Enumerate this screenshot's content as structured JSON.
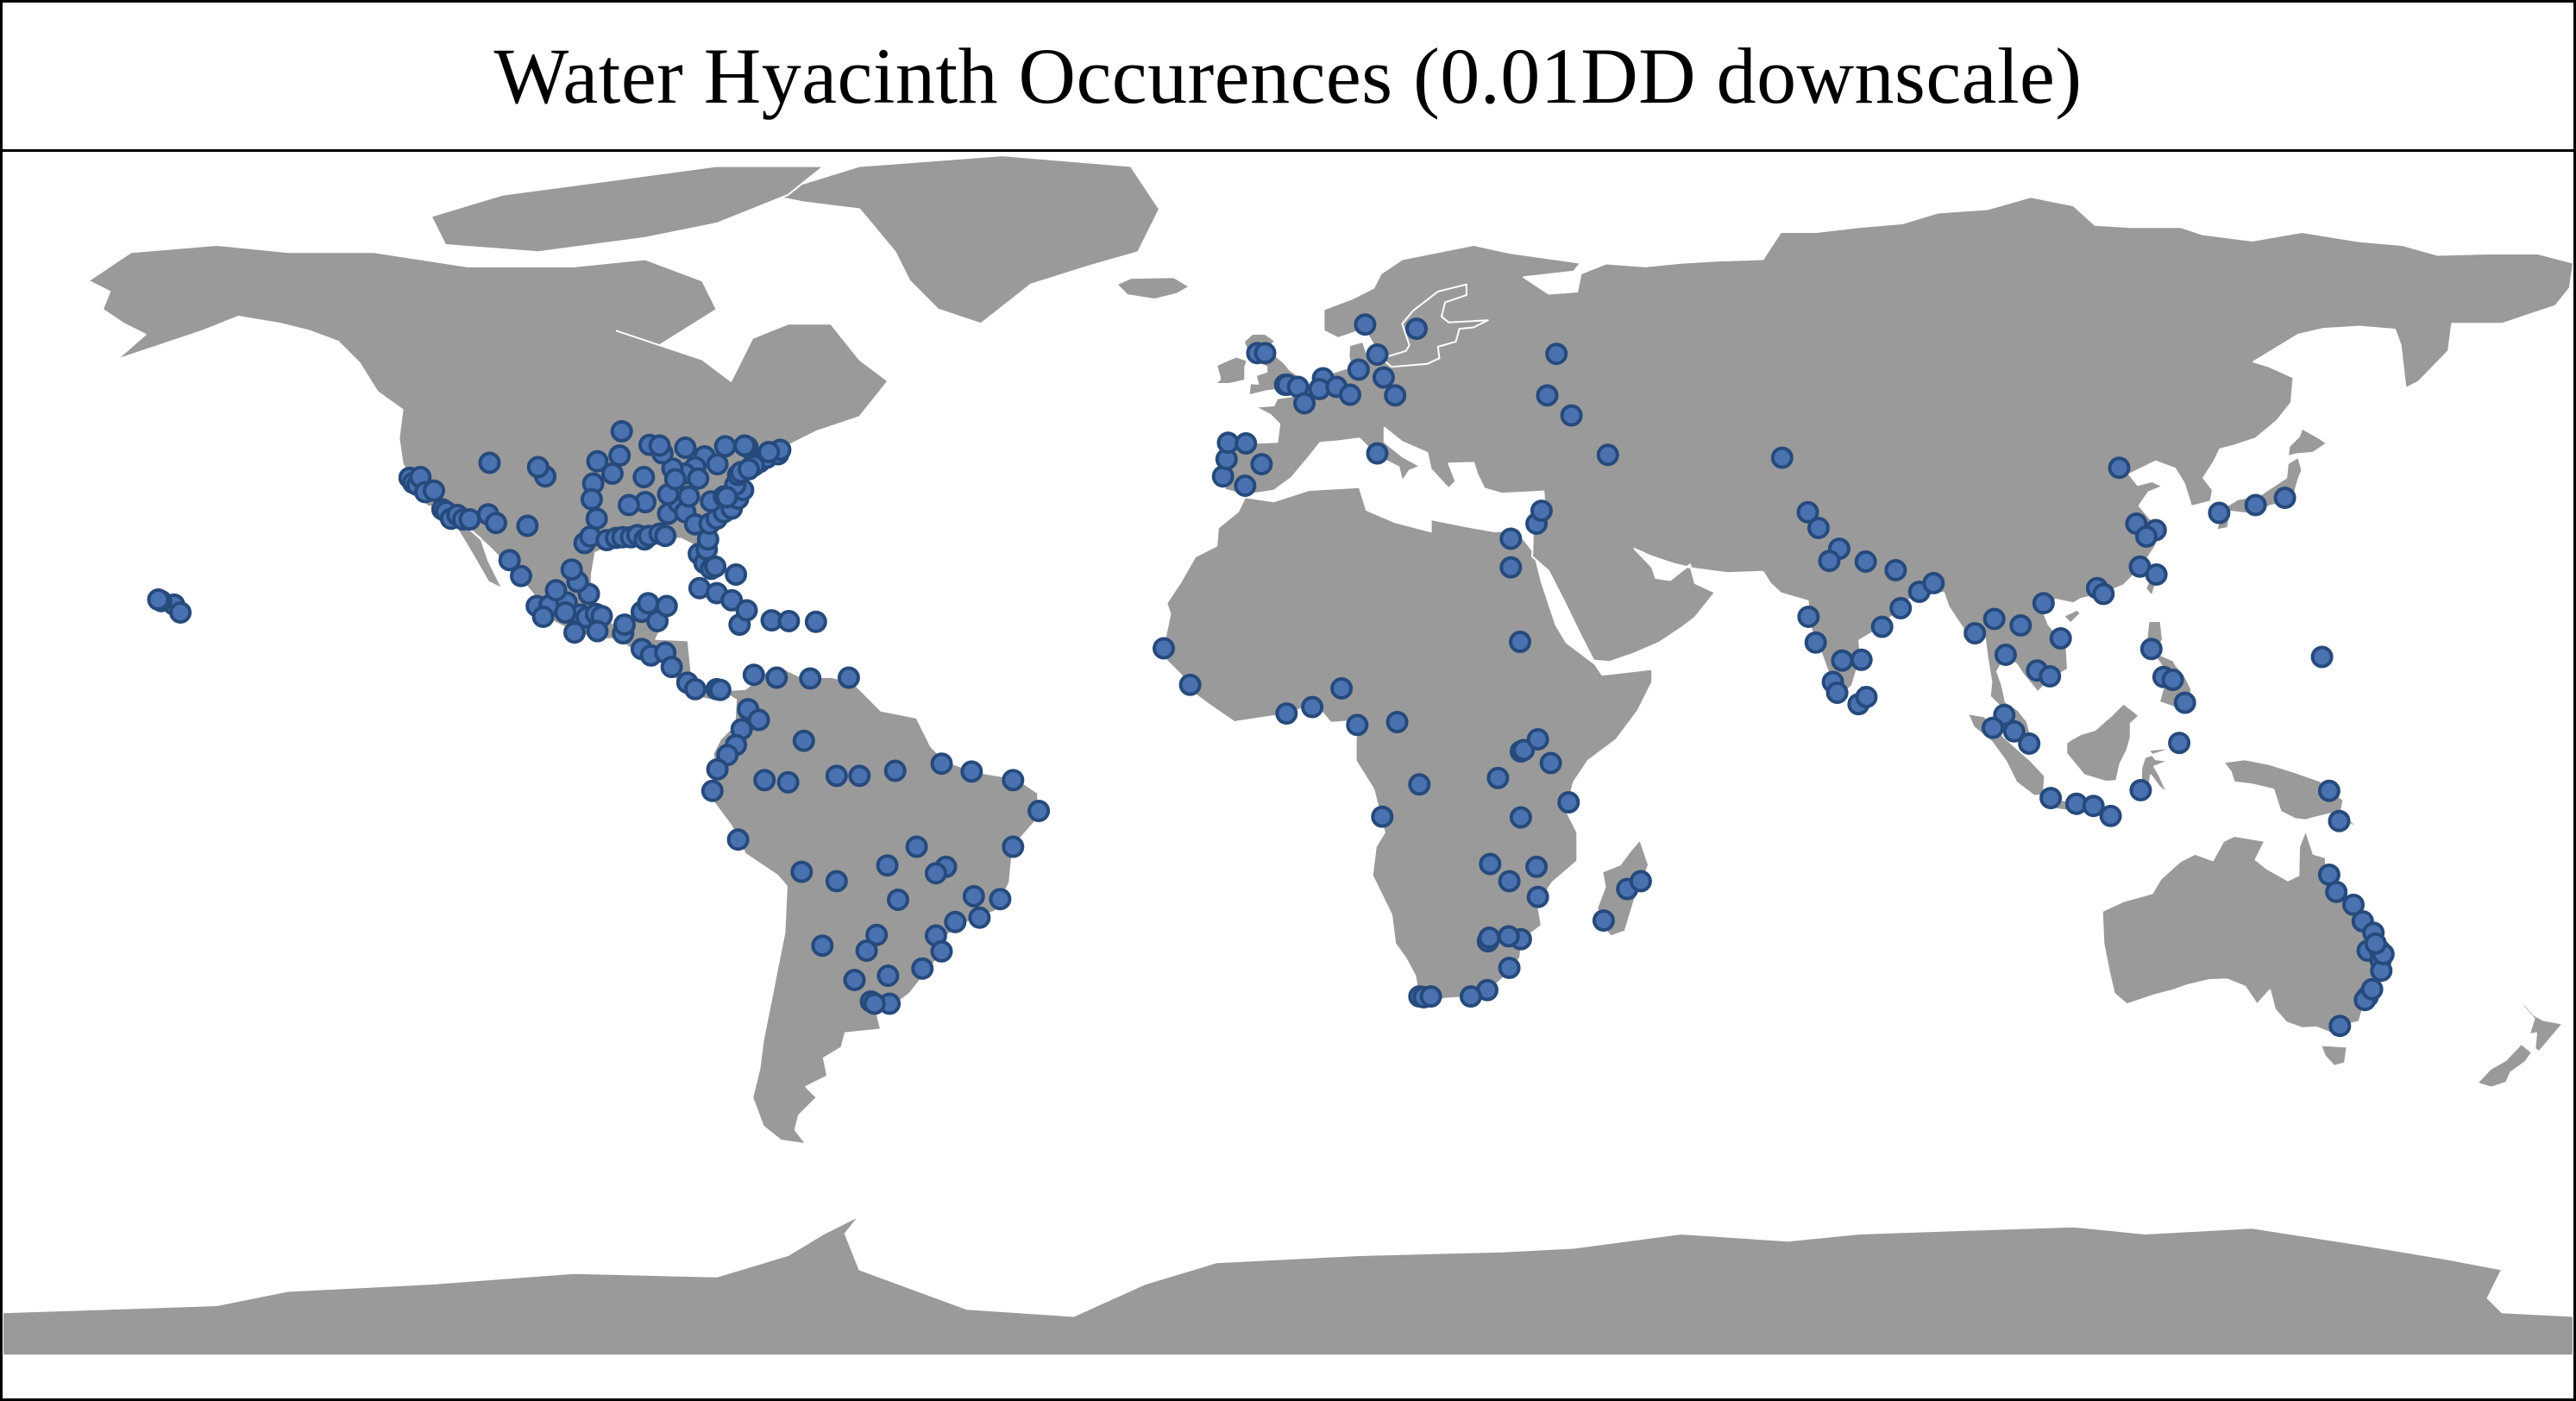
{
  "title": "Water Hyacinth Occurences (0.01DD downscale)",
  "colors": {
    "land": "#9a9a9a",
    "ocean": "#ffffff",
    "point_fill": "#4a72b0",
    "point_stroke": "#264a7c"
  },
  "chart_data": {
    "type": "scatter",
    "projection": "equirectangular",
    "xlim": [
      -180,
      180
    ],
    "ylim": [
      -90,
      84
    ],
    "grid": false,
    "legend": "none",
    "points": [
      [
        -123.0,
        38.5
      ],
      [
        -122.5,
        37.8
      ],
      [
        -121.9,
        37.5
      ],
      [
        -121.5,
        38.6
      ],
      [
        -120.8,
        36.5
      ],
      [
        -119.6,
        36.7
      ],
      [
        -118.4,
        34.1
      ],
      [
        -117.9,
        33.8
      ],
      [
        -117.2,
        32.8
      ],
      [
        -116.3,
        33.3
      ],
      [
        -115.5,
        32.7
      ],
      [
        -114.6,
        32.7
      ],
      [
        -112.0,
        33.4
      ],
      [
        -110.9,
        32.2
      ],
      [
        -106.5,
        31.8
      ],
      [
        -104.0,
        38.7
      ],
      [
        -105.0,
        40.0
      ],
      [
        -111.8,
        40.6
      ],
      [
        -98.5,
        29.4
      ],
      [
        -97.7,
        30.3
      ],
      [
        -96.8,
        32.8
      ],
      [
        -95.4,
        29.8
      ],
      [
        -94.1,
        30.1
      ],
      [
        -93.2,
        30.2
      ],
      [
        -92.0,
        30.2
      ],
      [
        -91.1,
        30.5
      ],
      [
        -90.1,
        29.9
      ],
      [
        -89.5,
        30.4
      ],
      [
        -88.0,
        30.7
      ],
      [
        -87.2,
        30.4
      ],
      [
        -86.8,
        33.5
      ],
      [
        -85.3,
        35.0
      ],
      [
        -84.4,
        33.7
      ],
      [
        -83.0,
        32.0
      ],
      [
        -82.5,
        27.9
      ],
      [
        -81.7,
        26.6
      ],
      [
        -81.4,
        28.5
      ],
      [
        -81.2,
        29.9
      ],
      [
        -80.8,
        25.8
      ],
      [
        -80.2,
        26.1
      ],
      [
        -81.0,
        32.1
      ],
      [
        -80.0,
        32.8
      ],
      [
        -79.0,
        33.7
      ],
      [
        -77.9,
        34.2
      ],
      [
        -77.0,
        35.6
      ],
      [
        -76.3,
        36.8
      ],
      [
        -77.4,
        37.5
      ],
      [
        -77.0,
        38.9
      ],
      [
        -76.6,
        39.3
      ],
      [
        -75.2,
        40.0
      ],
      [
        -74.0,
        40.7
      ],
      [
        -73.0,
        41.3
      ],
      [
        -71.4,
        41.8
      ],
      [
        -71.1,
        42.4
      ],
      [
        -72.7,
        42.1
      ],
      [
        -75.7,
        42.8
      ],
      [
        -78.8,
        42.9
      ],
      [
        -81.7,
        41.5
      ],
      [
        -83.0,
        40.0
      ],
      [
        -84.5,
        39.1
      ],
      [
        -86.2,
        39.8
      ],
      [
        -87.6,
        41.9
      ],
      [
        -89.4,
        43.1
      ],
      [
        -90.2,
        38.6
      ],
      [
        -90.0,
        35.1
      ],
      [
        -92.3,
        34.7
      ],
      [
        -94.6,
        39.1
      ],
      [
        -93.6,
        41.6
      ],
      [
        -96.7,
        40.8
      ],
      [
        -97.3,
        37.7
      ],
      [
        -97.5,
        35.5
      ],
      [
        -86.8,
        36.2
      ],
      [
        -85.8,
        38.3
      ],
      [
        -82.6,
        38.4
      ],
      [
        -80.8,
        35.2
      ],
      [
        -79.0,
        35.9
      ],
      [
        -78.6,
        35.8
      ],
      [
        -83.9,
        35.9
      ],
      [
        -88.0,
        43.0
      ],
      [
        -93.3,
        45.0
      ],
      [
        -84.4,
        42.7
      ],
      [
        -76.1,
        43.0
      ],
      [
        -74.8,
        40.2
      ],
      [
        -75.5,
        39.7
      ],
      [
        -79.9,
        40.4
      ],
      [
        -156.0,
        20.8
      ],
      [
        -157.8,
        21.3
      ],
      [
        -155.1,
        19.7
      ],
      [
        -158.2,
        21.5
      ],
      [
        -109.0,
        27.0
      ],
      [
        -107.4,
        24.8
      ],
      [
        -105.2,
        20.6
      ],
      [
        -103.4,
        20.7
      ],
      [
        -101.0,
        21.1
      ],
      [
        -99.1,
        19.4
      ],
      [
        -98.2,
        19.0
      ],
      [
        -96.9,
        19.5
      ],
      [
        -96.1,
        19.2
      ],
      [
        -97.9,
        22.3
      ],
      [
        -99.5,
        24.0
      ],
      [
        -100.3,
        25.7
      ],
      [
        -102.5,
        22.8
      ],
      [
        -104.3,
        19.1
      ],
      [
        -101.2,
        19.7
      ],
      [
        -99.9,
        16.9
      ],
      [
        -96.7,
        17.1
      ],
      [
        -93.1,
        16.8
      ],
      [
        -92.9,
        18.0
      ],
      [
        -90.5,
        19.8
      ],
      [
        -89.6,
        21.0
      ],
      [
        -88.3,
        18.5
      ],
      [
        -87.0,
        20.6
      ],
      [
        -90.5,
        14.6
      ],
      [
        -89.2,
        13.7
      ],
      [
        -87.2,
        14.1
      ],
      [
        -86.3,
        12.1
      ],
      [
        -84.1,
        9.9
      ],
      [
        -83.0,
        9.0
      ],
      [
        -80.0,
        9.0
      ],
      [
        -79.5,
        8.9
      ],
      [
        -77.3,
        25.0
      ],
      [
        -76.8,
        18.0
      ],
      [
        -72.3,
        18.6
      ],
      [
        -69.9,
        18.5
      ],
      [
        -66.1,
        18.4
      ],
      [
        -82.4,
        23.1
      ],
      [
        -80.0,
        22.4
      ],
      [
        -77.9,
        21.4
      ],
      [
        -75.8,
        20.0
      ],
      [
        -61.5,
        10.6
      ],
      [
        -66.9,
        10.5
      ],
      [
        -71.6,
        10.6
      ],
      [
        -74.8,
        11.0
      ],
      [
        -75.6,
        6.2
      ],
      [
        -74.1,
        4.7
      ],
      [
        -76.5,
        3.4
      ],
      [
        -77.3,
        1.2
      ],
      [
        -78.5,
        -0.2
      ],
      [
        -79.9,
        -2.2
      ],
      [
        -80.6,
        -5.2
      ],
      [
        -77.0,
        -12.0
      ],
      [
        -73.3,
        -3.7
      ],
      [
        -70.0,
        -4.0
      ],
      [
        -67.8,
        1.8
      ],
      [
        -63.2,
        -3.1
      ],
      [
        -60.0,
        -3.1
      ],
      [
        -55.0,
        -2.4
      ],
      [
        -48.5,
        -1.4
      ],
      [
        -44.3,
        -2.5
      ],
      [
        -38.5,
        -3.7
      ],
      [
        -34.9,
        -8.0
      ],
      [
        -38.5,
        -13.0
      ],
      [
        -40.3,
        -20.3
      ],
      [
        -43.2,
        -22.9
      ],
      [
        -46.6,
        -23.5
      ],
      [
        -49.3,
        -25.4
      ],
      [
        -51.2,
        -30.0
      ],
      [
        -48.5,
        -27.6
      ],
      [
        -47.9,
        -15.8
      ],
      [
        -49.3,
        -16.7
      ],
      [
        -52.0,
        -13.0
      ],
      [
        -56.1,
        -15.6
      ],
      [
        -54.6,
        -20.4
      ],
      [
        -57.6,
        -25.3
      ],
      [
        -58.4,
        -34.6
      ],
      [
        -60.7,
        -31.6
      ],
      [
        -59.0,
        -27.5
      ],
      [
        -65.2,
        -26.8
      ],
      [
        -68.1,
        -16.5
      ],
      [
        -63.2,
        -17.8
      ],
      [
        -56.0,
        -31.0
      ],
      [
        -55.8,
        -34.9
      ],
      [
        -57.9,
        -34.9
      ],
      [
        -44.0,
        -19.9
      ],
      [
        -9.1,
        38.7
      ],
      [
        -8.6,
        41.1
      ],
      [
        -8.4,
        43.4
      ],
      [
        -3.7,
        40.4
      ],
      [
        -6.0,
        37.4
      ],
      [
        -5.9,
        43.3
      ],
      [
        -0.4,
        51.5
      ],
      [
        -0.1,
        51.5
      ],
      [
        1.4,
        51.2
      ],
      [
        2.3,
        48.9
      ],
      [
        4.9,
        52.4
      ],
      [
        4.4,
        50.9
      ],
      [
        6.8,
        51.2
      ],
      [
        8.7,
        50.1
      ],
      [
        9.9,
        53.6
      ],
      [
        13.4,
        52.5
      ],
      [
        12.5,
        55.7
      ],
      [
        18.0,
        59.3
      ],
      [
        10.8,
        59.9
      ],
      [
        15.0,
        50.0
      ],
      [
        12.5,
        41.9
      ],
      [
        37.6,
        55.8
      ],
      [
        36.3,
        50.0
      ],
      [
        39.7,
        47.2
      ],
      [
        44.8,
        41.7
      ],
      [
        -4.3,
        55.9
      ],
      [
        -3.2,
        55.9
      ],
      [
        139.6,
        35.7
      ],
      [
        135.5,
        34.7
      ],
      [
        130.4,
        33.6
      ],
      [
        34.8,
        32.1
      ],
      [
        35.5,
        33.9
      ],
      [
        31.2,
        30.0
      ],
      [
        31.2,
        26.0
      ],
      [
        32.5,
        15.6
      ],
      [
        -17.4,
        14.7
      ],
      [
        -13.7,
        9.6
      ],
      [
        -0.2,
        5.6
      ],
      [
        3.4,
        6.5
      ],
      [
        7.5,
        9.1
      ],
      [
        15.3,
        4.4
      ],
      [
        9.7,
        4.0
      ],
      [
        13.2,
        -8.8
      ],
      [
        18.4,
        -4.3
      ],
      [
        32.6,
        0.3
      ],
      [
        36.8,
        -1.3
      ],
      [
        33.0,
        0.5
      ],
      [
        35.0,
        2.0
      ],
      [
        39.3,
        -6.8
      ],
      [
        29.4,
        -3.4
      ],
      [
        32.6,
        -8.9
      ],
      [
        28.3,
        -15.4
      ],
      [
        31.0,
        -17.8
      ],
      [
        34.8,
        -15.8
      ],
      [
        32.6,
        -25.9
      ],
      [
        31.0,
        -29.9
      ],
      [
        28.0,
        -26.2
      ],
      [
        27.9,
        -33.0
      ],
      [
        18.4,
        -33.9
      ],
      [
        19.0,
        -34.0
      ],
      [
        20.0,
        -33.9
      ],
      [
        25.6,
        -33.9
      ],
      [
        30.9,
        -25.5
      ],
      [
        28.2,
        -25.7
      ],
      [
        35.0,
        -20.0
      ],
      [
        47.5,
        -18.9
      ],
      [
        49.4,
        -17.8
      ],
      [
        44.2,
        -23.3
      ],
      [
        69.2,
        41.3
      ],
      [
        72.8,
        33.7
      ],
      [
        74.3,
        31.5
      ],
      [
        77.2,
        28.6
      ],
      [
        80.9,
        26.8
      ],
      [
        85.1,
        25.6
      ],
      [
        88.4,
        22.6
      ],
      [
        90.4,
        23.8
      ],
      [
        72.9,
        19.1
      ],
      [
        73.9,
        15.5
      ],
      [
        77.6,
        13.0
      ],
      [
        80.3,
        13.1
      ],
      [
        76.3,
        10.0
      ],
      [
        76.9,
        8.5
      ],
      [
        79.9,
        6.9
      ],
      [
        81.0,
        7.9
      ],
      [
        85.8,
        20.3
      ],
      [
        83.2,
        17.7
      ],
      [
        75.8,
        26.9
      ],
      [
        96.2,
        16.8
      ],
      [
        98.9,
        18.8
      ],
      [
        100.5,
        13.8
      ],
      [
        102.6,
        17.9
      ],
      [
        104.9,
        11.6
      ],
      [
        106.7,
        10.8
      ],
      [
        105.8,
        21.0
      ],
      [
        108.2,
        16.1
      ],
      [
        113.3,
        23.1
      ],
      [
        114.2,
        22.3
      ],
      [
        116.4,
        39.9
      ],
      [
        121.5,
        31.2
      ],
      [
        118.8,
        32.1
      ],
      [
        120.2,
        30.3
      ],
      [
        119.3,
        26.1
      ],
      [
        121.6,
        25.0
      ],
      [
        103.8,
        1.4
      ],
      [
        101.7,
        3.1
      ],
      [
        100.3,
        5.4
      ],
      [
        98.7,
        3.6
      ],
      [
        106.8,
        -6.2
      ],
      [
        110.4,
        -7.0
      ],
      [
        112.8,
        -7.3
      ],
      [
        115.2,
        -8.7
      ],
      [
        119.4,
        -5.1
      ],
      [
        124.8,
        1.5
      ],
      [
        120.9,
        14.6
      ],
      [
        122.6,
        10.7
      ],
      [
        125.6,
        7.1
      ],
      [
        123.9,
        10.3
      ],
      [
        144.8,
        13.5
      ],
      [
        147.2,
        -9.4
      ],
      [
        145.8,
        -5.2
      ],
      [
        145.8,
        -16.9
      ],
      [
        146.8,
        -19.3
      ],
      [
        149.2,
        -21.1
      ],
      [
        150.5,
        -23.4
      ],
      [
        151.2,
        -27.5
      ],
      [
        152.9,
        -27.5
      ],
      [
        153.0,
        -28.8
      ],
      [
        153.1,
        -30.3
      ],
      [
        151.2,
        -33.9
      ],
      [
        150.8,
        -34.4
      ],
      [
        151.8,
        -32.9
      ],
      [
        153.4,
        -28.0
      ],
      [
        147.3,
        -38.0
      ],
      [
        152.0,
        -25.0
      ],
      [
        152.3,
        -26.5
      ]
    ]
  }
}
